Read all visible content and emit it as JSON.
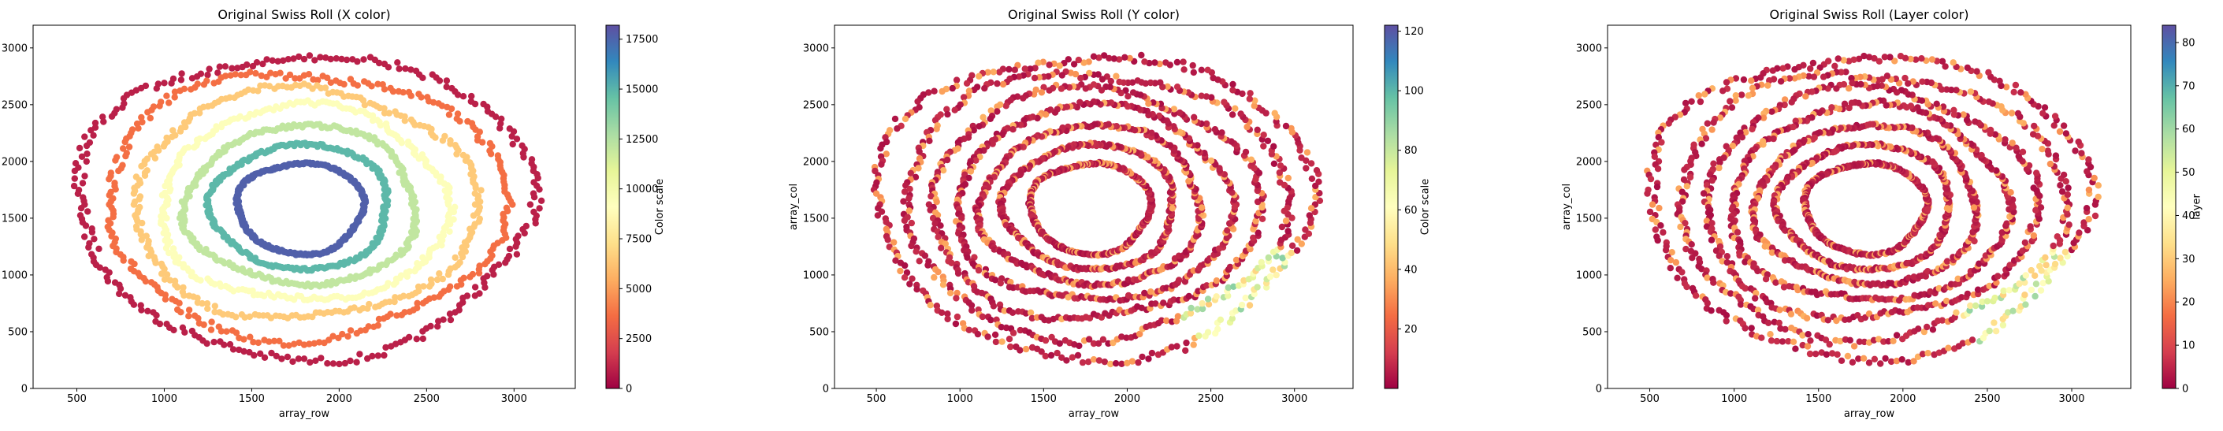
{
  "chart_data": [
    {
      "type": "scatter",
      "title": "Original Swiss Roll (X color)",
      "xlabel": "array_row",
      "ylabel": "array_col",
      "xlim": [
        250,
        3350
      ],
      "ylim": [
        0,
        3200
      ],
      "xticks": [
        500,
        1000,
        1500,
        2000,
        2500,
        3000
      ],
      "yticks": [
        0,
        500,
        1000,
        1500,
        2000,
        2500,
        3000
      ],
      "colorbar": {
        "label": "Color scale",
        "range": [
          0,
          18200
        ],
        "ticks": [
          0,
          2500,
          5000,
          7500,
          10000,
          12500,
          15000,
          17500
        ],
        "colormap": "Spectral"
      },
      "color_mode": "x",
      "grid": false,
      "series": [
        {
          "values": []
        }
      ],
      "rings": [
        {
          "cx": 1800,
          "cy": 1620,
          "rx": 1300,
          "ry": 1330
        },
        {
          "cx": 1800,
          "cy": 1620,
          "rx": 1140,
          "ry": 1170
        },
        {
          "cx": 1800,
          "cy": 1620,
          "rx": 980,
          "ry": 1010
        },
        {
          "cx": 1800,
          "cy": 1620,
          "rx": 820,
          "ry": 860
        },
        {
          "cx": 1790,
          "cy": 1610,
          "rx": 660,
          "ry": 700
        },
        {
          "cx": 1780,
          "cy": 1600,
          "rx": 510,
          "ry": 550
        },
        {
          "cx": 1780,
          "cy": 1590,
          "rx": 360,
          "ry": 400
        }
      ]
    },
    {
      "type": "scatter",
      "title": "Original Swiss Roll (Y color)",
      "xlabel": "array_row",
      "ylabel": "array_col",
      "xlim": [
        250,
        3350
      ],
      "ylim": [
        0,
        3200
      ],
      "xticks": [
        500,
        1000,
        1500,
        2000,
        2500,
        3000
      ],
      "yticks": [
        0,
        500,
        1000,
        1500,
        2000,
        2500,
        3000
      ],
      "colorbar": {
        "label": "Color scale",
        "range": [
          0,
          122
        ],
        "ticks": [
          20,
          40,
          60,
          80,
          100,
          120
        ],
        "colormap": "Spectral"
      },
      "color_mode": "y",
      "grid": false
    },
    {
      "type": "scatter",
      "title": "Original Swiss Roll (Layer color)",
      "xlabel": "array_row",
      "ylabel": "array_col",
      "xlim": [
        250,
        3350
      ],
      "ylim": [
        0,
        3200
      ],
      "xticks": [
        500,
        1000,
        1500,
        2000,
        2500,
        3000
      ],
      "yticks": [
        0,
        500,
        1000,
        1500,
        2000,
        2500,
        3000
      ],
      "colorbar": {
        "label": "layer",
        "range": [
          0,
          84
        ],
        "ticks": [
          0,
          10,
          20,
          30,
          40,
          50,
          60,
          70,
          80
        ],
        "colormap": "Spectral"
      },
      "color_mode": "layer",
      "grid": false
    }
  ]
}
